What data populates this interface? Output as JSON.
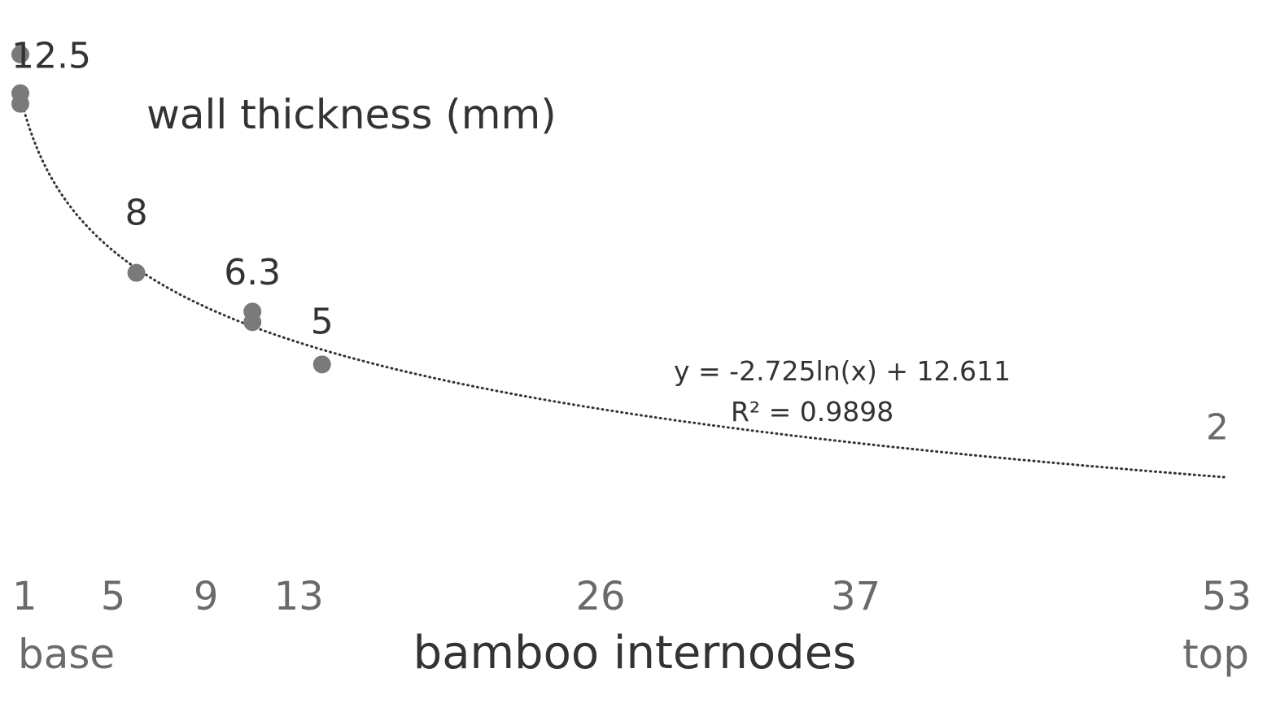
{
  "chart_data": {
    "type": "scatter",
    "title": "wall thickness (mm)",
    "xlabel": "bamboo internodes",
    "x_end_labels": {
      "left": "base",
      "right": "top"
    },
    "x_ticks": [
      1,
      5,
      9,
      13,
      26,
      37,
      53
    ],
    "xlim": [
      1,
      53
    ],
    "ylim": [
      0,
      13.5
    ],
    "grid": false,
    "legend": "none",
    "points": [
      {
        "x": 1,
        "y": 13.8
      },
      {
        "x": 1,
        "y": 12.7
      },
      {
        "x": 1,
        "y": 12.4
      },
      {
        "x": 6,
        "y": 7.6
      },
      {
        "x": 11,
        "y": 6.5
      },
      {
        "x": 11,
        "y": 6.2
      },
      {
        "x": 14,
        "y": 5.0
      }
    ],
    "point_labels": [
      {
        "x": 1,
        "y": 12.5,
        "text": "12.5"
      },
      {
        "x": 6,
        "y": 8,
        "text": "8"
      },
      {
        "x": 11,
        "y": 6.3,
        "text": "6.3"
      },
      {
        "x": 14,
        "y": 5,
        "text": "5"
      },
      {
        "x": 53,
        "y": 2,
        "text": "2"
      }
    ],
    "trendline": {
      "type": "logarithmic",
      "a": -2.725,
      "b": 12.611,
      "equation": "y = -2.725ln(x) + 12.611",
      "r2": "R² = 0.9898",
      "x_range": [
        1,
        53
      ]
    },
    "colors": {
      "points": "#7a7a7a",
      "trendline": "#333333",
      "text": "#333333",
      "ticks": "#6a6a6a"
    }
  }
}
